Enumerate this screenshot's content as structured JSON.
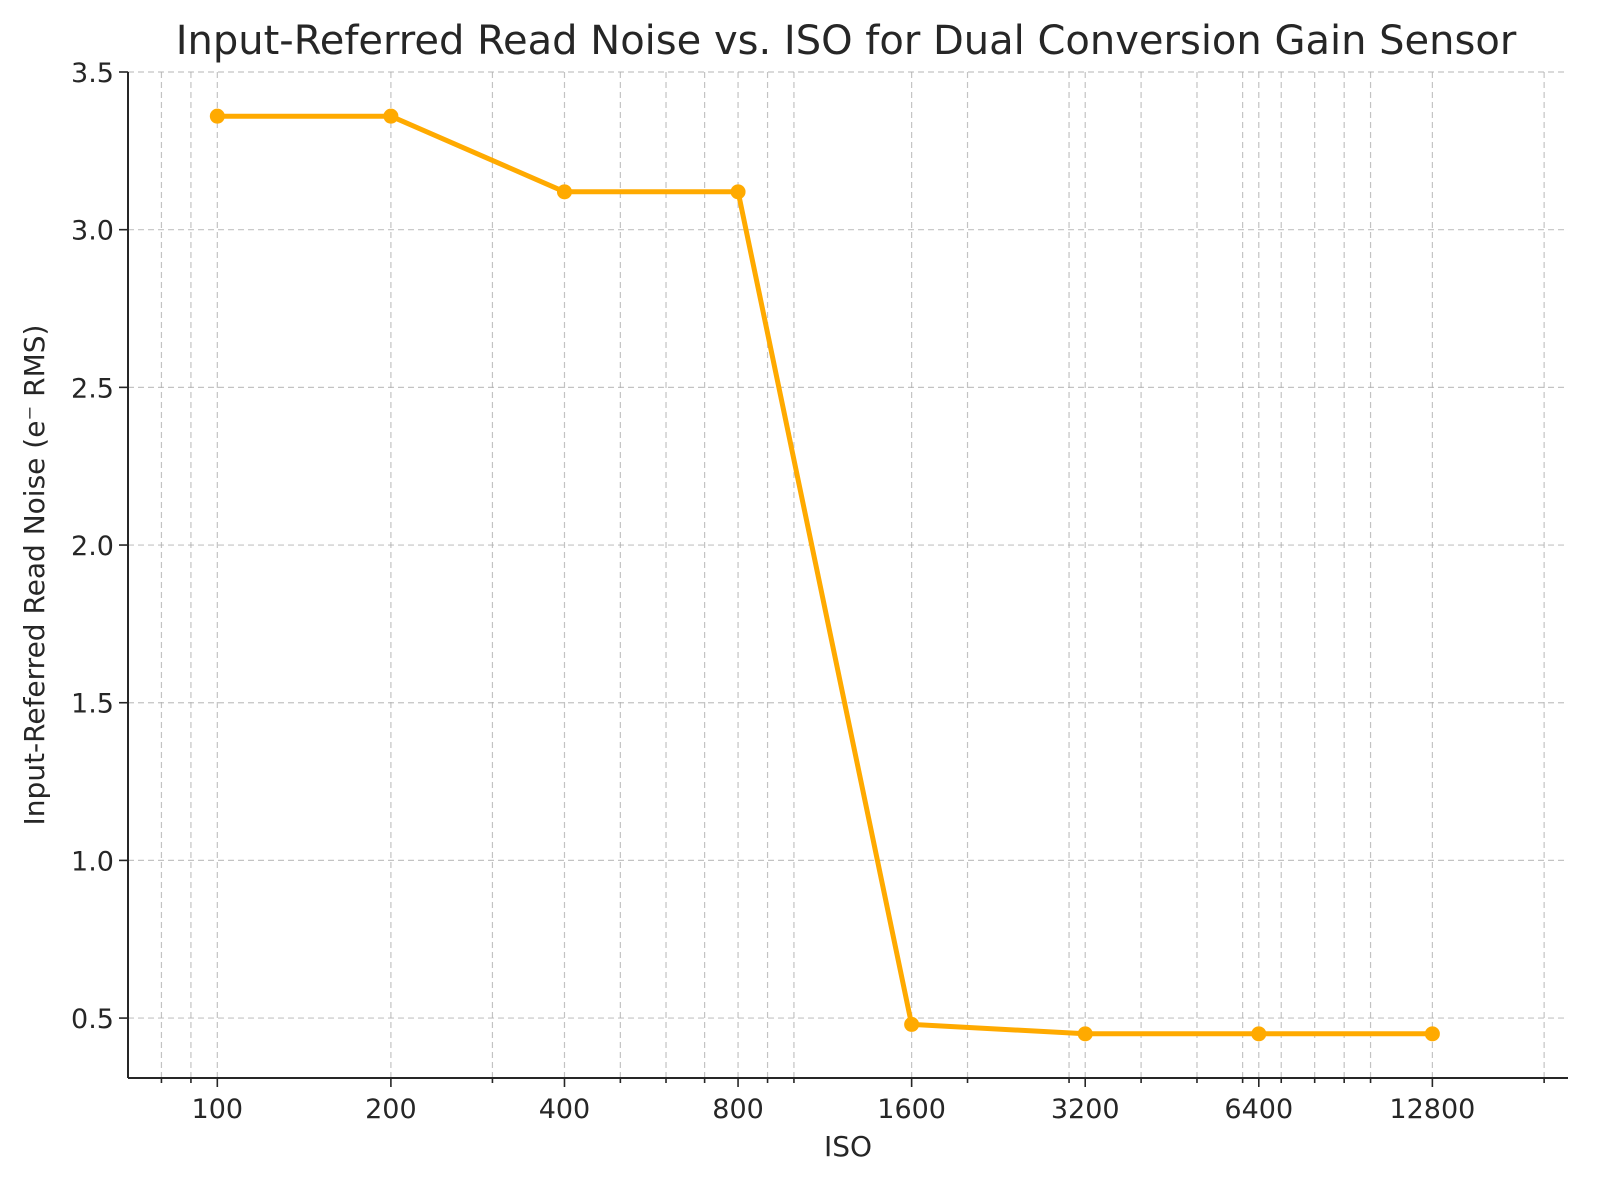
{
  "chart_data": {
    "type": "line",
    "title": "Input-Referred Read Noise vs. ISO for Dual Conversion Gain Sensor",
    "xlabel": "ISO",
    "ylabel": "Input-Referred Read Noise (e⁻ RMS)",
    "x_scale": "log2",
    "xlim": [
      70,
      22000
    ],
    "ylim": [
      0.31,
      3.5
    ],
    "x_ticks": [
      100,
      200,
      400,
      800,
      1600,
      3200,
      6400,
      12800
    ],
    "x_tick_labels": [
      "100",
      "200",
      "400",
      "800",
      "1600",
      "3200",
      "6400",
      "12800"
    ],
    "y_ticks": [
      0.5,
      1.0,
      1.5,
      2.0,
      2.5,
      3.0,
      3.5
    ],
    "y_tick_labels": [
      "0.5",
      "1.0",
      "1.5",
      "2.0",
      "2.5",
      "3.0",
      "3.5"
    ],
    "grid": true,
    "series": [
      {
        "color": "#FFAA00",
        "marker": "circle",
        "x": [
          100,
          200,
          400,
          800,
          1600,
          3200,
          6400,
          12800
        ],
        "y": [
          3.36,
          3.36,
          3.12,
          3.12,
          0.48,
          0.45,
          0.45,
          0.45
        ]
      }
    ]
  }
}
